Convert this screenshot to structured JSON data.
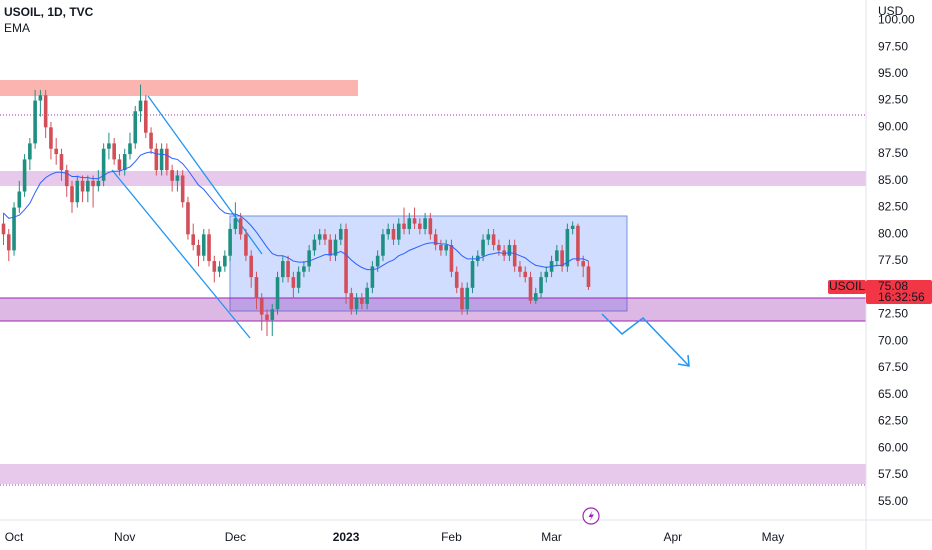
{
  "chart_data": {
    "type": "candlestick",
    "title": "USOIL, 1D, TVC",
    "y_unit": "USD",
    "countdown": "16:32:56",
    "categories": [
      null,
      null,
      "Oct",
      null,
      null,
      null,
      null,
      null,
      null,
      null,
      null,
      null,
      null,
      null,
      null,
      null,
      null,
      null,
      null,
      null,
      null,
      null,
      null,
      "Nov",
      null,
      null,
      null,
      null,
      null,
      null,
      null,
      null,
      null,
      null,
      null,
      null,
      null,
      null,
      null,
      null,
      null,
      null,
      null,
      null,
      "Dec",
      null,
      null,
      null,
      null,
      null,
      null,
      null,
      null,
      null,
      null,
      null,
      null,
      null,
      null,
      null,
      null,
      null,
      null,
      null,
      null,
      "2023",
      null,
      null,
      null,
      null,
      null,
      null,
      null,
      null,
      null,
      null,
      null,
      null,
      null,
      null,
      null,
      null,
      null,
      null,
      null,
      "Feb",
      null,
      null,
      null,
      null,
      null,
      null,
      null,
      null,
      null,
      null,
      null,
      null,
      null,
      null,
      null,
      null,
      null,
      null,
      "Mar",
      null,
      null,
      null,
      null,
      null,
      null,
      null,
      null,
      null,
      null,
      null,
      null,
      null,
      null,
      null,
      null,
      null,
      null,
      null,
      null,
      null,
      null,
      "Apr",
      null,
      null,
      null,
      null,
      null,
      null,
      null,
      null,
      null,
      null,
      null,
      null,
      null,
      null,
      null,
      null,
      null,
      null,
      "May",
      null,
      null,
      null,
      null,
      null,
      null,
      null,
      null,
      null,
      null,
      null,
      null,
      null,
      null,
      null,
      null,
      null
    ],
    "ylim": [
      53.3,
      101.9
    ],
    "yticks": [
      {
        "value": 55,
        "label": "55.00"
      },
      {
        "value": 57.5,
        "label": "57.50"
      },
      {
        "value": 60,
        "label": "60.00"
      },
      {
        "value": 62.5,
        "label": "62.50"
      },
      {
        "value": 65,
        "label": "65.00"
      },
      {
        "value": 67.5,
        "label": "67.50"
      },
      {
        "value": 70,
        "label": "70.00"
      },
      {
        "value": 72.5,
        "label": "72.50"
      },
      {
        "value": 75,
        "label": "75.00"
      },
      {
        "value": 77.5,
        "label": "77.50"
      },
      {
        "value": 80,
        "label": "80.00"
      },
      {
        "value": 82.5,
        "label": "82.50"
      },
      {
        "value": 85,
        "label": "85.00"
      },
      {
        "value": 87.5,
        "label": "87.50"
      },
      {
        "value": 90,
        "label": "90.00"
      },
      {
        "value": 92.5,
        "label": "92.50"
      },
      {
        "value": 95,
        "label": "95.00"
      },
      {
        "value": 97.5,
        "label": "97.50"
      },
      {
        "value": 100,
        "label": "100.00"
      }
    ],
    "grid": false,
    "series": [
      {
        "name": "USOIL",
        "type": "candlestick",
        "up_color": "#1f8f82",
        "down_color": "#d24f5a",
        "tag_color": "#f23645",
        "open": [
          81,
          80,
          78.5,
          82.5,
          84,
          87,
          88.5,
          92.5,
          93,
          90,
          88,
          87.5,
          86,
          84.5,
          83,
          85,
          84,
          85,
          84.5,
          85,
          88,
          88.5,
          87,
          86,
          87.5,
          88.5,
          91.5,
          92.5,
          89.5,
          88,
          86,
          88,
          86,
          85,
          85.5,
          83,
          80,
          79,
          78,
          80,
          77.5,
          76.5,
          77,
          78,
          80.5,
          81.5,
          80,
          78,
          76,
          74,
          72.5,
          72,
          73,
          76,
          77.5,
          76,
          75,
          76.5,
          77,
          78.5,
          79.5,
          80,
          79.5,
          78,
          79.5,
          80.5,
          74.5,
          73,
          74,
          73.5,
          75,
          77,
          78,
          80,
          80.5,
          79.5,
          81,
          80.5,
          81.5,
          81,
          80.5,
          81.5,
          80,
          79,
          78.5,
          79,
          76.5,
          75,
          73,
          75,
          77.5,
          78,
          79.5,
          80,
          79,
          78.5,
          78,
          79,
          77,
          76.5,
          76,
          73.8,
          74.5,
          76,
          76.5,
          77.5,
          78.5,
          77,
          80.5,
          80.8,
          77.5,
          77,
          null,
          null,
          null,
          null,
          null,
          null,
          null,
          null,
          null,
          null,
          null,
          null,
          null,
          null,
          null,
          null,
          null,
          null,
          null,
          null,
          null,
          null,
          null,
          null,
          null,
          null,
          null,
          null,
          null,
          null,
          null,
          null,
          null,
          null,
          null,
          null,
          null,
          null,
          null,
          null,
          null,
          null,
          null,
          null,
          null,
          null,
          null,
          null,
          null,
          null,
          null,
          null
        ],
        "high": [
          82,
          80.5,
          83,
          85,
          87.5,
          89,
          93.5,
          93.5,
          93.5,
          90.5,
          89,
          88,
          86.5,
          85,
          85.5,
          85.5,
          85.5,
          85.5,
          86,
          88.5,
          89.5,
          89,
          87.5,
          88,
          89.5,
          92,
          94,
          93,
          90,
          88.5,
          88.5,
          88.5,
          86.5,
          86,
          86,
          83.5,
          81,
          79.5,
          80.5,
          80.5,
          78,
          77.5,
          78.5,
          81,
          83,
          82,
          80.5,
          78.5,
          76.5,
          74.5,
          73,
          73.5,
          76.5,
          78,
          78,
          76.5,
          77,
          77.5,
          79,
          80,
          80.5,
          80.5,
          80,
          80,
          81,
          81,
          75,
          74.5,
          74.5,
          75.5,
          77.5,
          78.5,
          80.5,
          81,
          81,
          81.5,
          82.5,
          82,
          82.5,
          81.5,
          82,
          82,
          80.5,
          79.5,
          79.5,
          79.5,
          77,
          75.5,
          75.5,
          78,
          78.5,
          80,
          80.5,
          80.5,
          79.5,
          79,
          79.5,
          79.5,
          77.5,
          77,
          76.5,
          75,
          76.5,
          77,
          78,
          79,
          79,
          81,
          81.2,
          81,
          78,
          77.5,
          null,
          null,
          null,
          null,
          null,
          null,
          null,
          null,
          null,
          null,
          null,
          null,
          null,
          null,
          null,
          null,
          null,
          null,
          null,
          null,
          null,
          null,
          null,
          null,
          null,
          null,
          null,
          null,
          null,
          null,
          null,
          null,
          null,
          null,
          null,
          null,
          null,
          null,
          null,
          null,
          null,
          null,
          null,
          null,
          null,
          null,
          null,
          null,
          null,
          null,
          null,
          null
        ],
        "low": [
          79,
          77.5,
          78,
          82,
          83.5,
          86,
          88,
          91,
          89,
          87,
          86.5,
          85,
          83.5,
          82,
          82.5,
          83,
          83,
          82.5,
          84,
          84.5,
          87,
          86.5,
          85.5,
          85.5,
          87,
          88,
          90.5,
          89,
          87.5,
          85.5,
          85.5,
          85.5,
          84,
          84,
          82.5,
          79.5,
          78.5,
          77,
          77.5,
          77,
          75.5,
          76,
          76.5,
          77.5,
          80,
          79.5,
          77.5,
          75,
          73,
          71,
          70.5,
          70.5,
          72.5,
          75.5,
          75.5,
          74,
          74.5,
          76,
          76.5,
          78,
          79,
          79,
          77.5,
          77.5,
          79,
          73.5,
          72.5,
          72.5,
          73,
          73,
          74.5,
          76.5,
          77.5,
          79.5,
          79,
          79,
          80,
          80,
          80.5,
          80,
          80,
          79.5,
          78.5,
          78,
          78,
          76,
          74.5,
          72.5,
          72.5,
          74.5,
          77,
          77.5,
          79,
          78.5,
          78,
          77.5,
          77.5,
          76.5,
          76,
          75.5,
          73.5,
          73.5,
          74,
          75.5,
          76,
          77,
          76.5,
          76.5,
          80,
          77,
          76,
          74.8,
          null,
          null,
          null,
          null,
          null,
          null,
          null,
          null,
          null,
          null,
          null,
          null,
          null,
          null,
          null,
          null,
          null,
          null,
          null,
          null,
          null,
          null,
          null,
          null,
          null,
          null,
          null,
          null,
          null,
          null,
          null,
          null,
          null,
          null,
          null,
          null,
          null,
          null,
          null,
          null,
          null,
          null,
          null,
          null,
          null,
          null,
          null,
          null,
          null,
          null,
          null,
          null
        ],
        "close": [
          80,
          78.5,
          82.5,
          84,
          87,
          88.5,
          92.5,
          93,
          90,
          88,
          87.5,
          86,
          84.5,
          83,
          85,
          84,
          85,
          84.5,
          85,
          88,
          88.5,
          87,
          86,
          87.5,
          88.5,
          91.5,
          92.5,
          89.5,
          88,
          86,
          88,
          86,
          85,
          85.5,
          83,
          80,
          79,
          78,
          80,
          77.5,
          76.5,
          77,
          78,
          80.5,
          81.5,
          80,
          78,
          76,
          74,
          72.5,
          72,
          73,
          76,
          77.5,
          76,
          75,
          76.5,
          77,
          78.5,
          79.5,
          80,
          79.5,
          78,
          79.5,
          80.5,
          74.5,
          73,
          74,
          73.5,
          75,
          77,
          78,
          80,
          80.5,
          79.5,
          81,
          80.5,
          81.5,
          81,
          80.5,
          81.5,
          80,
          79,
          78.5,
          79,
          76.5,
          75,
          73,
          75,
          77.5,
          78,
          79.5,
          80,
          79,
          78.5,
          78,
          79,
          77,
          76.5,
          76,
          73.8,
          74.5,
          76,
          76.5,
          77.5,
          78.5,
          77,
          80.5,
          80.8,
          77.5,
          77,
          75.08,
          null,
          null,
          null,
          null,
          null,
          null,
          null,
          null,
          null,
          null,
          null,
          null,
          null,
          null,
          null,
          null,
          null,
          null,
          null,
          null,
          null,
          null,
          null,
          null,
          null,
          null,
          null,
          null,
          null,
          null,
          null,
          null,
          null,
          null,
          null,
          null,
          null,
          null,
          null,
          null,
          null,
          null,
          null,
          null,
          null,
          null,
          null,
          null,
          null,
          null,
          null,
          null
        ]
      },
      {
        "name": "EMA",
        "type": "line",
        "color": "#2962ff",
        "values": [
          82,
          81.5,
          81.6,
          81.8,
          82.3,
          82.9,
          83.9,
          84.8,
          85.3,
          85.6,
          85.8,
          85.8,
          85.7,
          85.4,
          85.4,
          85.3,
          85.3,
          85.2,
          85.2,
          85.5,
          85.8,
          85.9,
          85.9,
          86.1,
          86.3,
          86.8,
          87.4,
          87.6,
          87.7,
          87.5,
          87.5,
          87.4,
          87.1,
          87,
          86.6,
          86,
          85.3,
          84.6,
          84.2,
          83.6,
          83,
          82.4,
          82,
          81.9,
          81.9,
          81.7,
          81.3,
          80.8,
          80.2,
          79.5,
          78.8,
          78.2,
          78,
          78,
          77.8,
          77.5,
          77.4,
          77.4,
          77.5,
          77.7,
          77.9,
          78.1,
          78.1,
          78.2,
          78.4,
          78.1,
          77.6,
          77.2,
          76.9,
          76.7,
          76.7,
          76.8,
          77.1,
          77.4,
          77.6,
          78,
          78.2,
          78.5,
          78.7,
          78.9,
          79.1,
          79.2,
          79.2,
          79.1,
          79.1,
          78.9,
          78.5,
          78,
          77.7,
          77.7,
          77.7,
          77.9,
          78.1,
          78.2,
          78.3,
          78.2,
          78.3,
          78.2,
          78,
          77.8,
          77.4,
          77.1,
          77,
          76.9,
          77,
          77.1,
          77.1,
          77.4,
          77.7,
          77.7,
          77.7,
          77.5,
          null,
          null,
          null,
          null,
          null,
          null,
          null,
          null,
          null,
          null,
          null,
          null,
          null,
          null,
          null,
          null,
          null,
          null,
          null,
          null,
          null,
          null,
          null,
          null,
          null,
          null,
          null,
          null,
          null,
          null,
          null,
          null,
          null,
          null,
          null,
          null,
          null,
          null,
          null,
          null,
          null,
          null,
          null,
          null,
          null,
          null,
          null,
          null,
          null,
          null,
          null,
          null
        ]
      }
    ]
  }
}
